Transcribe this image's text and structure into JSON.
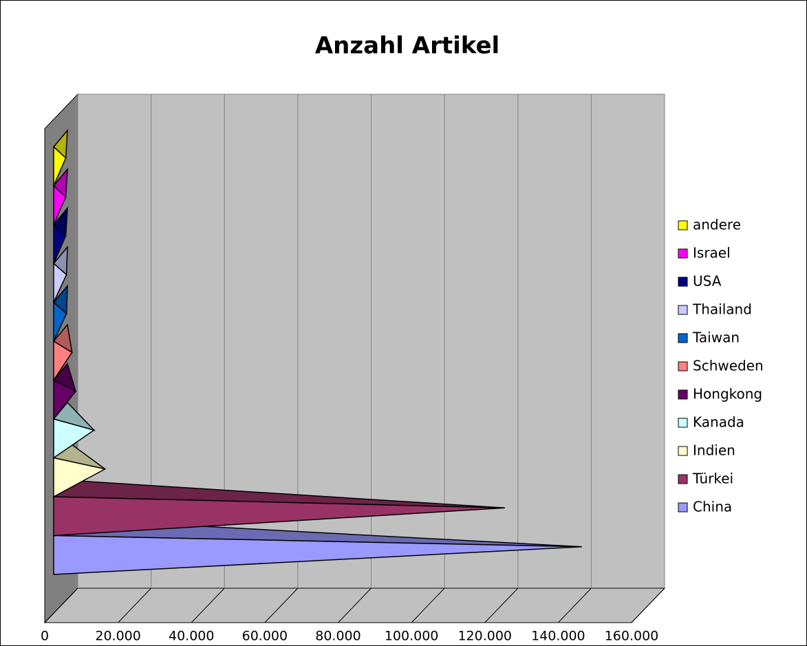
{
  "chart_data": {
    "type": "pyramid-bar-3d",
    "title": "Anzahl Artikel",
    "xlim": [
      0,
      160000
    ],
    "xticks": [
      0,
      {
        "value": 20000,
        "label": "20.000"
      },
      {
        "value": 40000,
        "label": "40.000"
      },
      {
        "value": 60000,
        "label": "60.000"
      },
      {
        "value": 80000,
        "label": "80.000"
      },
      {
        "value": 100000,
        "label": "100.000"
      },
      {
        "value": 120000,
        "label": "120.000"
      },
      {
        "value": 140000,
        "label": "140.000"
      },
      {
        "value": 160000,
        "label": "160.000"
      }
    ],
    "grid": true,
    "legend": "right",
    "series": [
      {
        "name": "China",
        "color": "#9999ff",
        "values": [
          144000
        ]
      },
      {
        "name": "Türkei",
        "color": "#993366",
        "values": [
          123000
        ]
      },
      {
        "name": "Indien",
        "color": "#ffffcc",
        "values": [
          14000
        ]
      },
      {
        "name": "Kanada",
        "color": "#ccffff",
        "values": [
          11000
        ]
      },
      {
        "name": "Hongkong",
        "color": "#660066",
        "values": [
          6000
        ]
      },
      {
        "name": "Schweden",
        "color": "#ff8080",
        "values": [
          5000
        ]
      },
      {
        "name": "Taiwan",
        "color": "#0066cc",
        "values": [
          3500
        ]
      },
      {
        "name": "Thailand",
        "color": "#ccccff",
        "values": [
          3500
        ]
      },
      {
        "name": "USA",
        "color": "#000080",
        "values": [
          3300
        ]
      },
      {
        "name": "Israel",
        "color": "#ff00ff",
        "values": [
          3300
        ]
      },
      {
        "name": "andere",
        "color": "#ffff00",
        "values": [
          3300
        ]
      }
    ]
  }
}
